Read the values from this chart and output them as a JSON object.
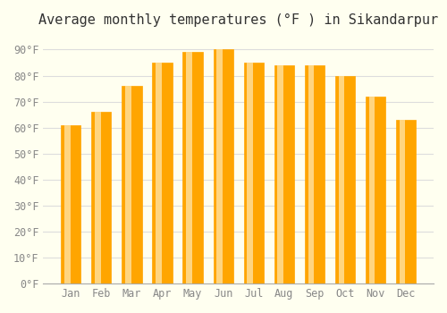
{
  "title": "Average monthly temperatures (°F ) in Sikandarpur",
  "months": [
    "Jan",
    "Feb",
    "Mar",
    "Apr",
    "May",
    "Jun",
    "Jul",
    "Aug",
    "Sep",
    "Oct",
    "Nov",
    "Dec"
  ],
  "values": [
    61,
    66,
    76,
    85,
    89,
    90,
    85,
    84,
    84,
    80,
    72,
    63
  ],
  "ylim": [
    0,
    95
  ],
  "yticks": [
    0,
    10,
    20,
    30,
    40,
    50,
    60,
    70,
    80,
    90
  ],
  "ytick_labels": [
    "0°F",
    "10°F",
    "20°F",
    "30°F",
    "40°F",
    "50°F",
    "60°F",
    "70°F",
    "80°F",
    "90°F"
  ],
  "bar_color_top": "#FFA500",
  "bar_color_bottom": "#FFD580",
  "background_color": "#FFFFF0",
  "grid_color": "#DDDDDD",
  "title_fontsize": 11,
  "tick_fontsize": 8.5,
  "bar_edge_color": "#FFA500"
}
